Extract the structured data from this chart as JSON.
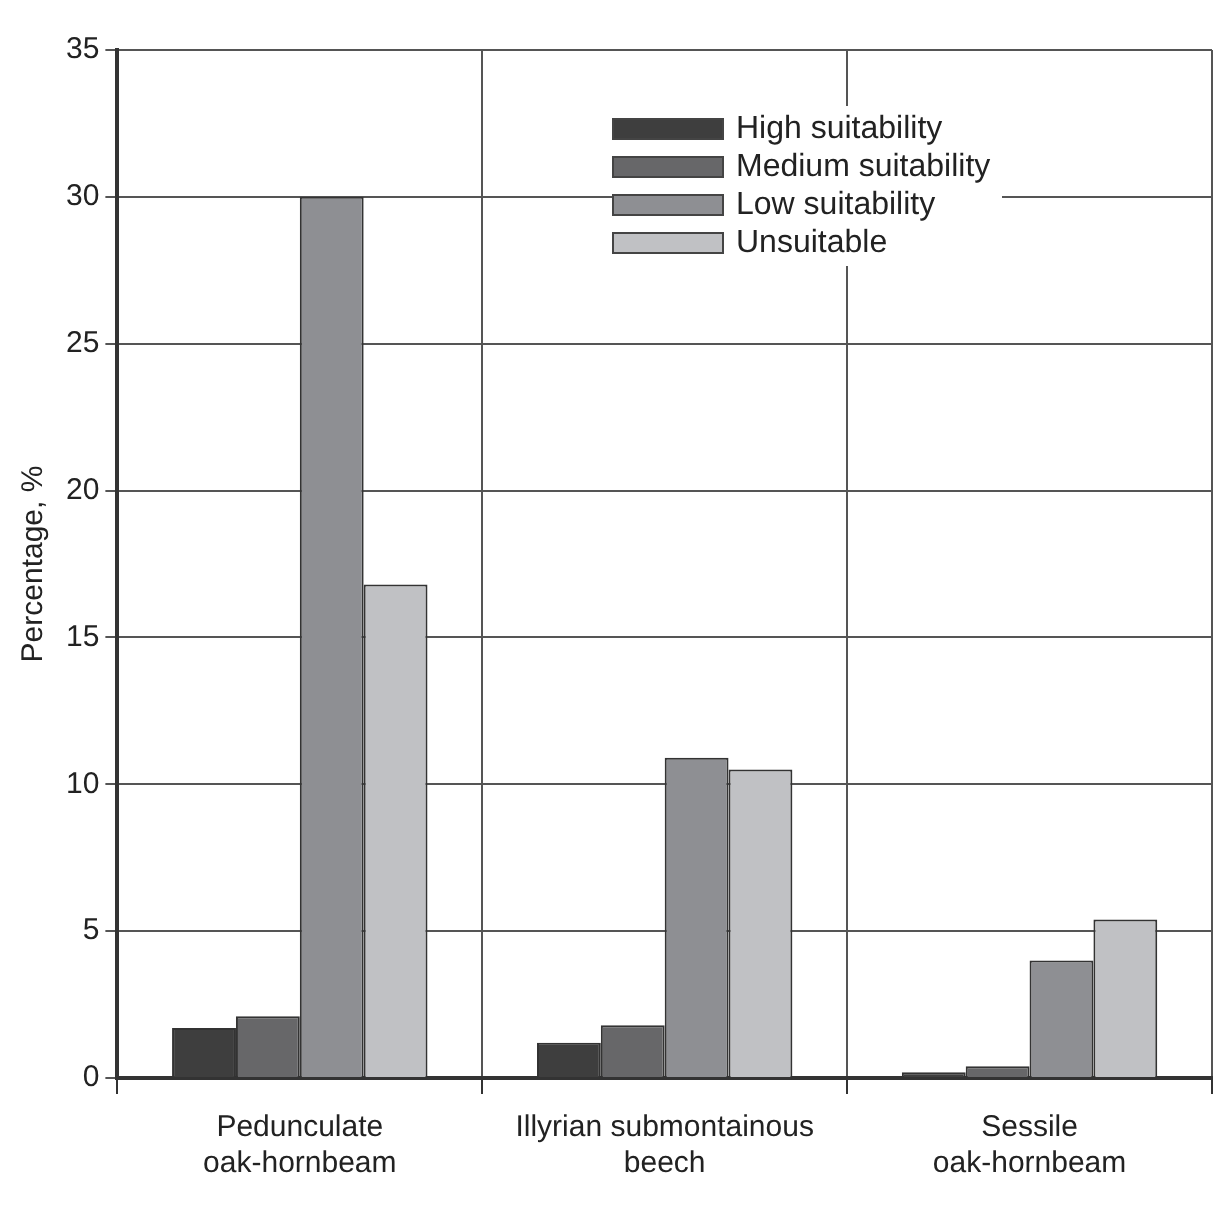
{
  "chart_data": {
    "type": "bar",
    "ylabel": "Percentage, %",
    "categories": [
      "Pedunculate\noak-hornbeam",
      "Illyrian submontainous\nbeech",
      "Sessile\noak-hornbeam"
    ],
    "series": [
      {
        "name": "High suitability",
        "color": "#3e3e3e",
        "values": [
          1.7,
          1.2,
          0.2
        ]
      },
      {
        "name": "Medium suitability",
        "color": "#676769",
        "values": [
          2.1,
          1.8,
          0.4
        ]
      },
      {
        "name": "Low suitability",
        "color": "#8e8f93",
        "values": [
          30,
          10.9,
          4
        ]
      },
      {
        "name": "Unsuitable",
        "color": "#c0c1c4",
        "values": [
          16.8,
          10.5,
          5.4
        ]
      }
    ],
    "ylim": [
      0,
      35
    ],
    "yticks": [
      0,
      5,
      10,
      15,
      20,
      25,
      30,
      35
    ],
    "grid": true,
    "legend": "top right"
  }
}
